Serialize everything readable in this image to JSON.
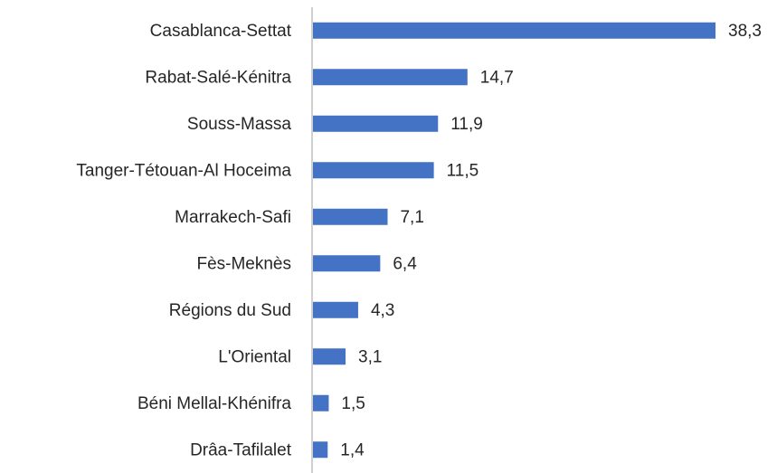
{
  "chart_data": {
    "type": "bar",
    "orientation": "horizontal",
    "categories": [
      "Casablanca-Settat",
      "Rabat-Salé-Kénitra",
      "Souss-Massa",
      "Tanger-Tétouan-Al Hoceima",
      "Marrakech-Safi",
      "Fès-Meknès",
      "Régions du Sud",
      "L'Oriental",
      "Béni Mellal-Khénifra",
      "Drâa-Tafilalet"
    ],
    "values": [
      38.3,
      14.7,
      11.9,
      11.5,
      7.1,
      6.4,
      4.3,
      3.1,
      1.5,
      1.4
    ],
    "value_labels": [
      "38,3",
      "14,7",
      "11,9",
      "11,5",
      "7,1",
      "6,4",
      "4,3",
      "3,1",
      "1,5",
      "1,4"
    ],
    "color": "#4472c4"
  }
}
